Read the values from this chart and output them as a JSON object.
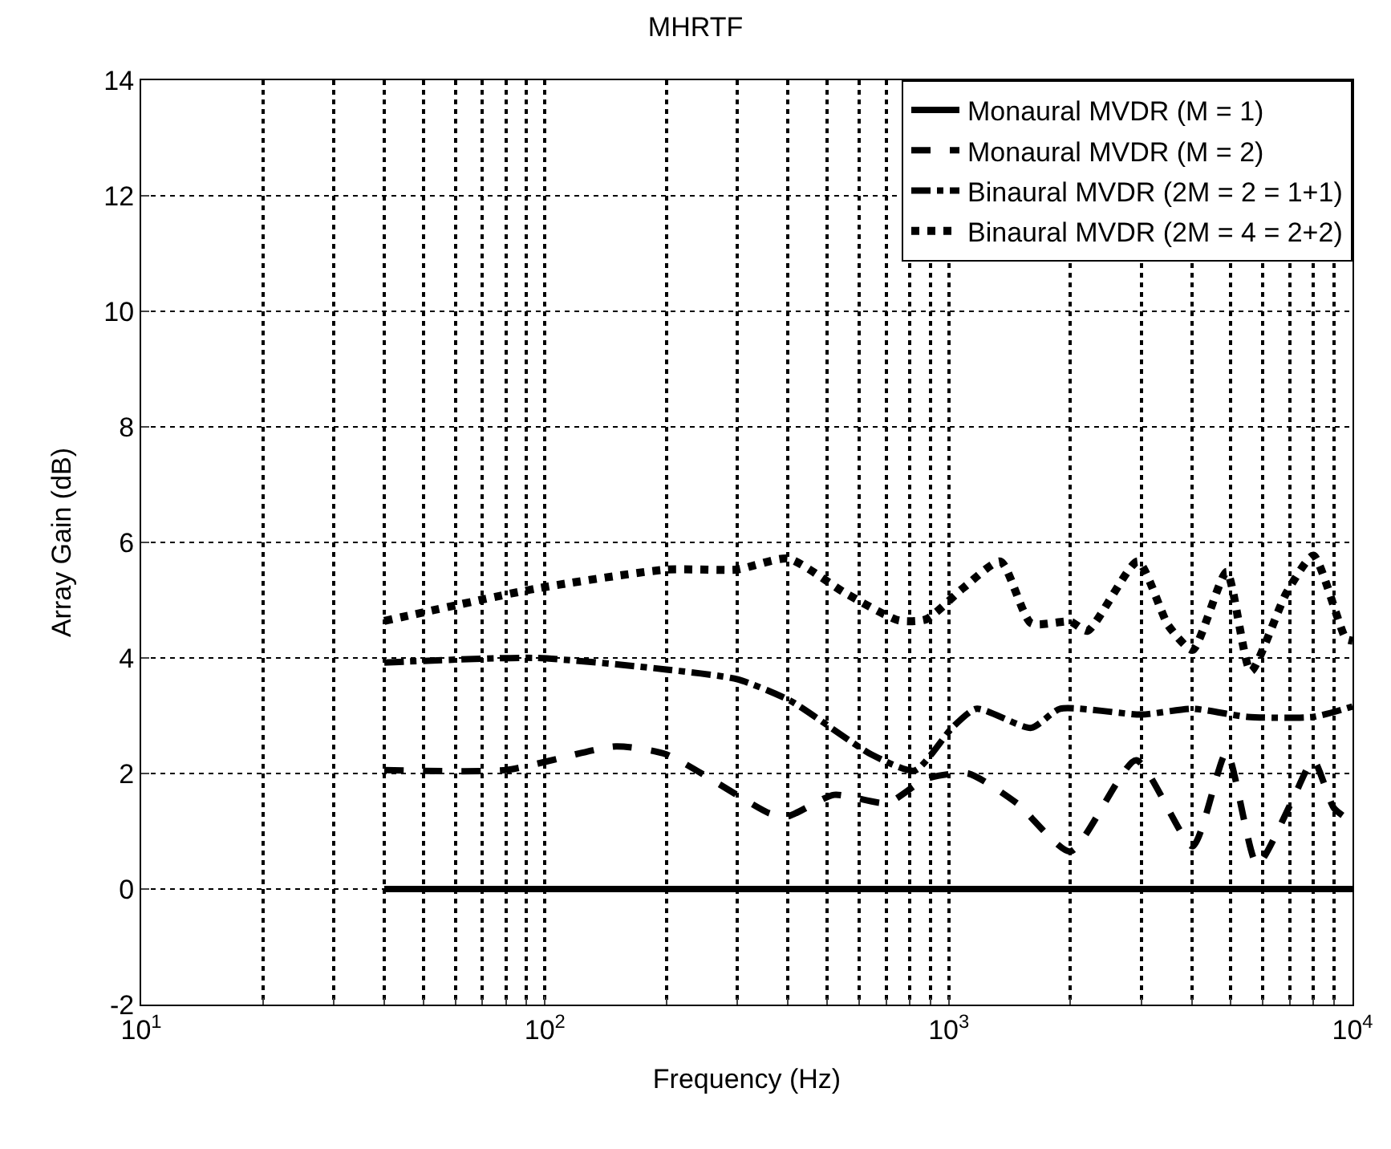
{
  "chart_data": {
    "type": "line",
    "title": "MHRTF",
    "xlabel": "Frequency (Hz)",
    "ylabel": "Array Gain (dB)",
    "log": "x",
    "grid": true,
    "legend": "top right",
    "marker": "none",
    "xlim": [
      10,
      10000
    ],
    "xticks": [
      {
        "value": 10,
        "label": "10$^{1}$"
      },
      {
        "value": 100,
        "label": "10$^{2}$"
      },
      {
        "value": 1000,
        "label": "10$^{3}$"
      },
      {
        "value": 10000,
        "label": "10$^{4}$"
      }
    ],
    "ylim": [
      -2,
      14
    ],
    "yticks": [
      -2,
      0,
      2,
      4,
      6,
      8,
      10,
      12,
      14
    ],
    "series": [
      {
        "name": "Monaural MVDR (M = 1)",
        "color": "#000000",
        "line_style": "solid",
        "x": [
          40,
          10000
        ],
        "values": [
          0,
          0
        ]
      },
      {
        "name": "Monaural MVDR (M = 2)",
        "color": "#000000",
        "line_style": "dashed",
        "x": [
          40,
          80,
          150,
          200,
          360,
          400,
          520,
          705,
          880,
          1117,
          1472,
          2000,
          2911,
          4018,
          4877,
          5807,
          7047,
          8000,
          9000,
          10000
        ],
        "values": [
          2.06,
          2.06,
          2.47,
          2.33,
          1.31,
          1.26,
          1.63,
          1.49,
          1.91,
          2.0,
          1.49,
          0.65,
          2.23,
          0.74,
          2.37,
          0.42,
          1.49,
          2.23,
          1.4,
          1.16
        ]
      },
      {
        "name": "Binaural MVDR (2M = 2 = 1+1)",
        "color": "#000000",
        "line_style": "dashdot",
        "x": [
          40,
          95,
          200,
          300,
          405,
          643,
          824,
          1019,
          1170,
          1600,
          1888,
          3000,
          4018,
          5500,
          8000,
          10000
        ],
        "values": [
          3.92,
          4.0,
          3.8,
          3.63,
          3.26,
          2.33,
          2.05,
          2.79,
          3.12,
          2.79,
          3.12,
          3.02,
          3.12,
          2.98,
          2.98,
          3.16
        ]
      },
      {
        "name": "Binaural MVDR (2M = 4 = 2+2)",
        "color": "#000000",
        "line_style": "dotted",
        "x": [
          40,
          95,
          200,
          299,
          400,
          555,
          752,
          880,
          1086,
          1343,
          1600,
          2000,
          2208,
          2938,
          3499,
          4018,
          4877,
          5598,
          6855,
          8000,
          9638,
          10000
        ],
        "values": [
          4.64,
          5.2,
          5.53,
          5.53,
          5.72,
          5.12,
          4.65,
          4.67,
          5.21,
          5.67,
          4.6,
          4.63,
          4.47,
          5.67,
          4.56,
          4.14,
          5.49,
          3.77,
          5.12,
          5.77,
          4.33,
          4.3
        ]
      }
    ]
  }
}
